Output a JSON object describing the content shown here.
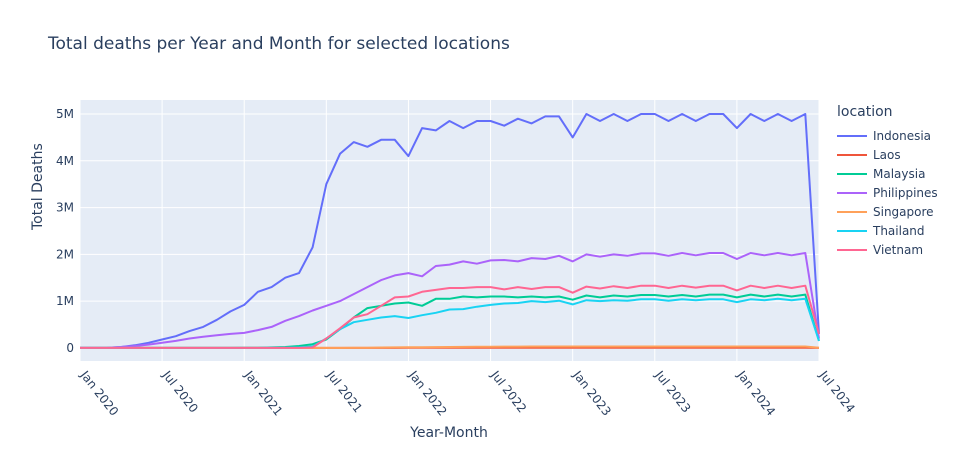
{
  "chart_data": {
    "type": "line",
    "title": "Total deaths per Year and Month for selected locations",
    "xlabel": "Year-Month",
    "ylabel": "Total Deaths",
    "ylim": [
      -280000,
      5300000
    ],
    "yticks": [
      0,
      1000000,
      2000000,
      3000000,
      4000000,
      5000000
    ],
    "ytick_labels": [
      "0",
      "1M",
      "2M",
      "3M",
      "4M",
      "5M"
    ],
    "xtick_labels": [
      "Jan 2020",
      "Jul 2020",
      "Jan 2021",
      "Jul 2021",
      "Jan 2022",
      "Jul 2022",
      "Jan 2023",
      "Jul 2023",
      "Jan 2024",
      "Jul 2024"
    ],
    "x_start": "Jan 2020",
    "x_end": "Aug 2024",
    "legend_title": "location",
    "legend_position": "right",
    "grid": true,
    "series": [
      {
        "name": "Indonesia",
        "color": "#636efa",
        "values": [
          0,
          0,
          5000,
          20000,
          55000,
          110000,
          180000,
          250000,
          360000,
          450000,
          600000,
          780000,
          920000,
          1200000,
          1300000,
          1500000,
          1600000,
          2150000,
          3500000,
          4150000,
          4400000,
          4300000,
          4450000,
          4450000,
          4100000,
          4700000,
          4650000,
          4850000,
          4700000,
          4850000,
          4850000,
          4750000,
          4900000,
          4800000,
          4950000,
          4950000,
          4500000,
          5000000,
          4850000,
          5000000,
          4850000,
          5000000,
          5000000,
          4850000,
          5000000,
          4850000,
          5000000,
          5000000,
          4700000,
          5000000,
          4850000,
          5000000,
          4850000,
          5000000,
          300000
        ]
      },
      {
        "name": "Laos",
        "color": "#ef553b",
        "values": [
          0,
          0,
          0,
          0,
          0,
          0,
          0,
          0,
          0,
          0,
          0,
          0,
          0,
          0,
          0,
          0,
          0,
          0,
          0,
          100,
          300,
          500,
          800,
          1000,
          1200,
          1400,
          1500,
          1600,
          1600,
          1600,
          1700,
          1700,
          1700,
          1700,
          1700,
          1700,
          1600,
          1700,
          1700,
          1700,
          1700,
          1700,
          1700,
          1700,
          1700,
          1700,
          1700,
          1700,
          1600,
          1700,
          1700,
          1700,
          1700,
          1700,
          100
        ]
      },
      {
        "name": "Malaysia",
        "color": "#00cc96",
        "values": [
          0,
          0,
          0,
          0,
          0,
          0,
          0,
          0,
          0,
          0,
          0,
          1000,
          2000,
          5000,
          10000,
          20000,
          40000,
          80000,
          180000,
          400000,
          650000,
          850000,
          900000,
          950000,
          970000,
          900000,
          1050000,
          1050000,
          1100000,
          1080000,
          1100000,
          1100000,
          1080000,
          1100000,
          1080000,
          1100000,
          1030000,
          1120000,
          1080000,
          1120000,
          1100000,
          1130000,
          1130000,
          1100000,
          1130000,
          1100000,
          1140000,
          1140000,
          1080000,
          1140000,
          1100000,
          1140000,
          1100000,
          1140000,
          150000
        ]
      },
      {
        "name": "Philippines",
        "color": "#ab63fa",
        "values": [
          0,
          0,
          5000,
          20000,
          40000,
          70000,
          110000,
          150000,
          200000,
          240000,
          270000,
          300000,
          320000,
          380000,
          450000,
          580000,
          680000,
          800000,
          900000,
          1000000,
          1150000,
          1300000,
          1450000,
          1550000,
          1600000,
          1530000,
          1750000,
          1780000,
          1850000,
          1800000,
          1870000,
          1880000,
          1850000,
          1920000,
          1900000,
          1970000,
          1850000,
          2000000,
          1950000,
          2000000,
          1970000,
          2020000,
          2020000,
          1970000,
          2030000,
          1980000,
          2030000,
          2030000,
          1900000,
          2030000,
          1980000,
          2030000,
          1980000,
          2030000,
          200000
        ]
      },
      {
        "name": "Singapore",
        "color": "#ffa15a",
        "values": [
          0,
          0,
          0,
          0,
          0,
          0,
          0,
          0,
          0,
          0,
          0,
          0,
          0,
          0,
          0,
          0,
          0,
          0,
          0,
          500,
          2000,
          5000,
          8000,
          10000,
          12000,
          15000,
          18000,
          20000,
          22000,
          24000,
          26000,
          27000,
          28000,
          29000,
          30000,
          30000,
          30000,
          31000,
          31000,
          31000,
          31000,
          31000,
          31000,
          31000,
          31000,
          31000,
          31000,
          31000,
          30000,
          31000,
          31000,
          31000,
          31000,
          31000,
          2000
        ]
      },
      {
        "name": "Thailand",
        "color": "#19d3f3",
        "values": [
          0,
          0,
          0,
          0,
          0,
          0,
          0,
          0,
          0,
          0,
          0,
          0,
          0,
          1000,
          2000,
          5000,
          10000,
          30000,
          200000,
          400000,
          550000,
          600000,
          650000,
          680000,
          640000,
          700000,
          750000,
          820000,
          830000,
          880000,
          920000,
          950000,
          960000,
          1000000,
          980000,
          1010000,
          930000,
          1020000,
          1000000,
          1020000,
          1010000,
          1040000,
          1040000,
          1010000,
          1040000,
          1020000,
          1040000,
          1040000,
          980000,
          1040000,
          1020000,
          1050000,
          1020000,
          1050000,
          150000
        ]
      },
      {
        "name": "Vietnam",
        "color": "#ff6692",
        "values": [
          0,
          0,
          0,
          0,
          0,
          0,
          0,
          0,
          0,
          0,
          0,
          0,
          0,
          0,
          0,
          0,
          0,
          10000,
          200000,
          420000,
          650000,
          720000,
          900000,
          1080000,
          1100000,
          1200000,
          1240000,
          1280000,
          1280000,
          1300000,
          1300000,
          1250000,
          1300000,
          1260000,
          1300000,
          1300000,
          1180000,
          1310000,
          1270000,
          1320000,
          1280000,
          1330000,
          1330000,
          1280000,
          1330000,
          1290000,
          1330000,
          1330000,
          1230000,
          1330000,
          1280000,
          1330000,
          1280000,
          1330000,
          300000
        ]
      }
    ]
  }
}
